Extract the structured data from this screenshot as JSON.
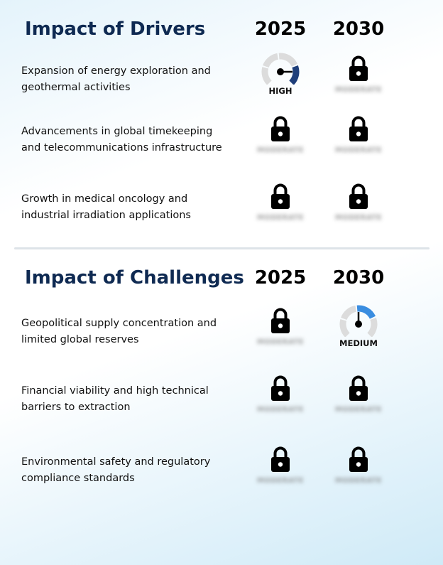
{
  "drivers": {
    "title": "Impact of Drivers",
    "year_1": "2025",
    "year_2": "2030",
    "rows": [
      {
        "label": "Expansion of energy exploration and geothermal activities",
        "cell_2025": {
          "state": "gauge",
          "level": "HIGH"
        },
        "cell_2030": {
          "state": "locked",
          "placeholder": "MODERATE"
        }
      },
      {
        "label": "Advancements in global timekeeping and telecommunications infrastructure",
        "cell_2025": {
          "state": "locked",
          "placeholder": "MODERATE"
        },
        "cell_2030": {
          "state": "locked",
          "placeholder": "MODERATE"
        }
      },
      {
        "label": "Growth in medical oncology and industrial irradiation applications",
        "cell_2025": {
          "state": "locked",
          "placeholder": "MODERATE"
        },
        "cell_2030": {
          "state": "locked",
          "placeholder": "MODERATE"
        }
      }
    ]
  },
  "challenges": {
    "title": "Impact of Challenges",
    "year_1": "2025",
    "year_2": "2030",
    "rows": [
      {
        "label": "Geopolitical supply concentration and limited global reserves",
        "cell_2025": {
          "state": "locked",
          "placeholder": "MODERATE"
        },
        "cell_2030": {
          "state": "gauge",
          "level": "MEDIUM"
        }
      },
      {
        "label": "Financial viability and high technical barriers to extraction",
        "cell_2025": {
          "state": "locked",
          "placeholder": "MODERATE"
        },
        "cell_2030": {
          "state": "locked",
          "placeholder": "MODERATE"
        }
      },
      {
        "label": "Environmental safety and regulatory compliance standards",
        "cell_2025": {
          "state": "locked",
          "placeholder": "MODERATE"
        },
        "cell_2030": {
          "state": "locked",
          "placeholder": "MODERATE"
        }
      }
    ]
  },
  "colors": {
    "title": "#0f2a52",
    "gauge_track": "#dcdcdc",
    "gauge_high": "#1f3f7a",
    "gauge_medium": "#3a8de0",
    "lock": "#000000"
  },
  "icons": {
    "locked": "lock-icon",
    "gauge": "gauge-icon"
  }
}
